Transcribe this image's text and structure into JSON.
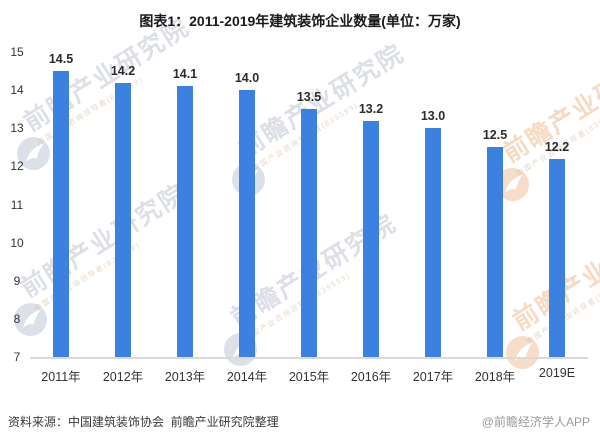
{
  "title": "图表1：2011-2019年建筑装饰企业数量(单位：万家)",
  "chart_data": {
    "type": "bar",
    "categories": [
      "2011年",
      "2012年",
      "2013年",
      "2014年",
      "2015年",
      "2016年",
      "2017年",
      "2018年",
      "2019E"
    ],
    "values": [
      14.5,
      14.2,
      14.1,
      14.0,
      13.5,
      13.2,
      13.0,
      12.5,
      12.2
    ],
    "labels": [
      "14.5",
      "14.2",
      "14.1",
      "14.0",
      "13.5",
      "13.2",
      "13.0",
      "12.5",
      "12.2"
    ],
    "title": "图表1：2011-2019年建筑装饰企业数量(单位：万家)",
    "xlabel": "",
    "ylabel": "",
    "ylim": [
      7,
      15
    ],
    "yticks": [
      15,
      14,
      13,
      12,
      11,
      10,
      9,
      8,
      7
    ],
    "bar_color": "#3d81e0",
    "grid": false,
    "legend": "none"
  },
  "watermark": {
    "main": "前瞻产业研究院",
    "sub": "中国产业咨询领导者(839599)"
  },
  "footer": {
    "source": "资料来源：中国建筑装饰协会  前瞻产业研究院整理",
    "brand": "@前瞻经济学人APP"
  }
}
